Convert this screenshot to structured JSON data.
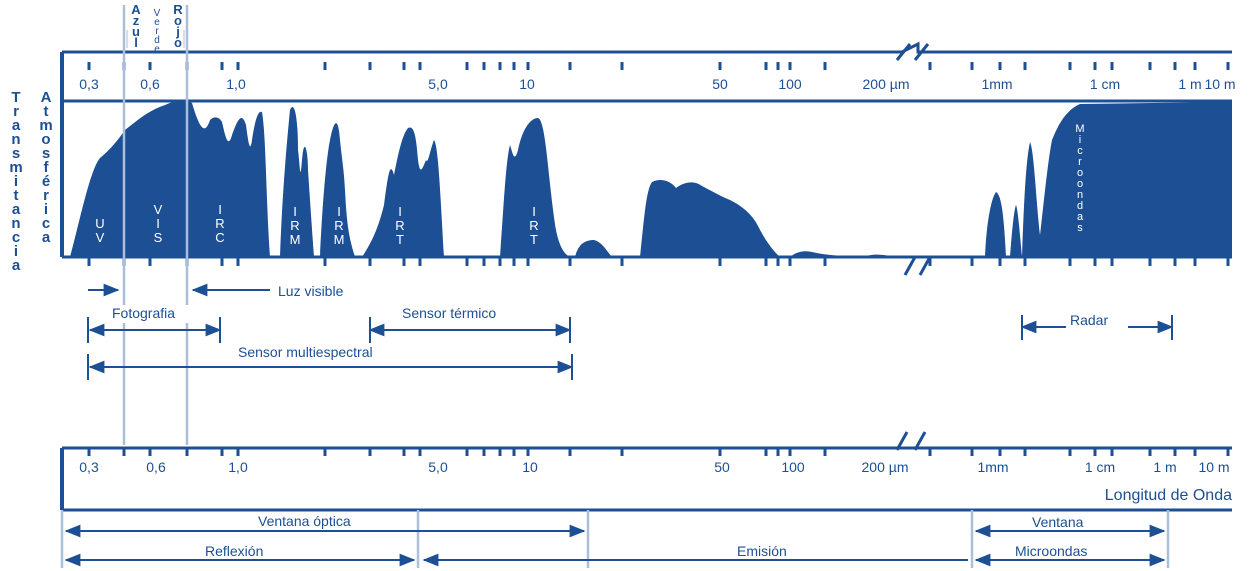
{
  "colors": {
    "primary": "#1c4f94",
    "guide": "#a9bfdc",
    "background": "#ffffff"
  },
  "top_axis": {
    "tick_labels": [
      "0,3",
      "0,6",
      "1,0",
      "5,0",
      "10",
      "50",
      "100",
      "200 µm",
      "1mm",
      "1 cm",
      "1 m",
      "10 m"
    ]
  },
  "bottom_axis": {
    "tick_labels": [
      "0,3",
      "0,6",
      "1,0",
      "5,0",
      "10",
      "50",
      "100",
      "200 µm",
      "1mm",
      "1 cm",
      "1 m",
      "10 m"
    ],
    "axis_title": "Longitud de Onda"
  },
  "left_labels": {
    "outer": "Transmitancia",
    "inner": "Atmosférica"
  },
  "color_labels": {
    "blue": "Azul",
    "green": "Verde",
    "red": "Rojo"
  },
  "band_labels": [
    "UV",
    "VIS",
    "IRC",
    "IRM",
    "IRM",
    "IRT",
    "IRT",
    "Microondas"
  ],
  "ranges": {
    "luz_visible": "Luz visible",
    "fotografia": "Fotografia",
    "sensor_termico": "Sensor térmico",
    "sensor_multiespectral": "Sensor multiespectral",
    "radar": "Radar"
  },
  "bottom_ranges": {
    "ventana_optica": "Ventana óptica",
    "reflexion": "Reflexión",
    "emision": "Emisión",
    "ventana": "Ventana",
    "microondas": "Microondas"
  }
}
